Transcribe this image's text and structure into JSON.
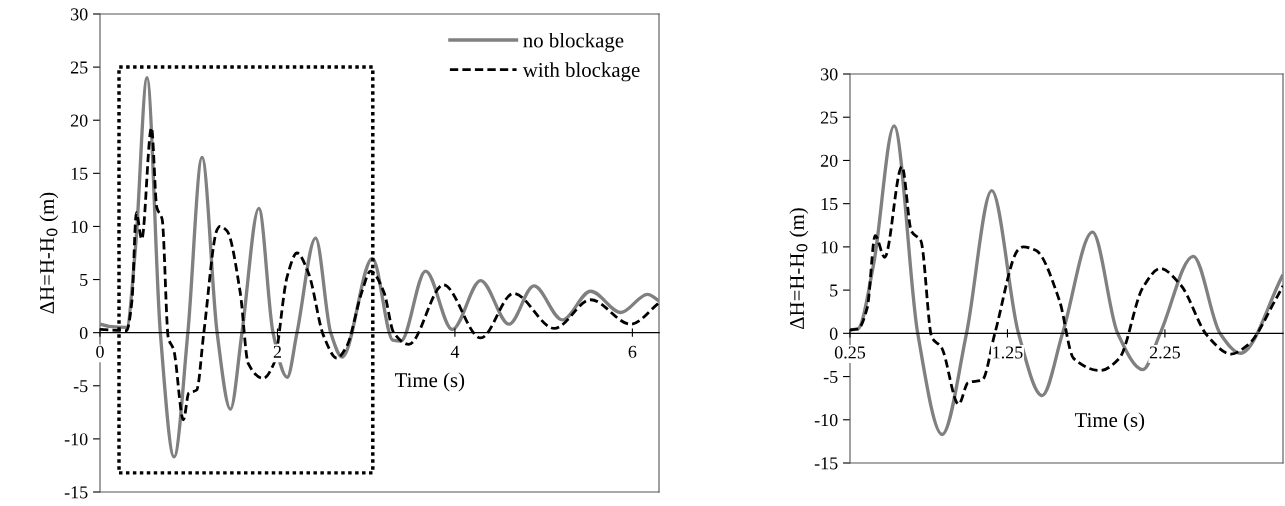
{
  "chart_data": [
    {
      "type": "line",
      "xlabel": "Time (s)",
      "ylabel": "ΔH=H-H$_{0}$ (m)",
      "xlim": [
        0,
        6.3
      ],
      "xticks": [
        0,
        2,
        4,
        6
      ],
      "ylim": [
        -15,
        30
      ],
      "yticks": [
        -15,
        -10,
        -5,
        0,
        5,
        10,
        15,
        20,
        25,
        30
      ],
      "legend": "top right",
      "series": [
        {
          "name": "no blockage",
          "color": "#808080",
          "line_style": "solid",
          "x": [
            0,
            0.1,
            0.3,
            0.4,
            0.53,
            0.68,
            0.835,
            0.99,
            1.15,
            1.32,
            1.47,
            1.6,
            1.79,
            1.95,
            2.11,
            2.22,
            2.43,
            2.6,
            2.73,
            3.07,
            3.3,
            3.39,
            3.67,
            3.97,
            4.29,
            4.61,
            4.89,
            5.21,
            5.53,
            5.87,
            6.17,
            6.3
          ],
          "values": [
            0.8,
            0.6,
            0.5,
            8,
            24,
            0,
            -11.7,
            0,
            16.5,
            0,
            -7.2,
            0,
            11.7,
            0,
            -4.2,
            0,
            8.9,
            0,
            -2.3,
            7,
            -0.7,
            -0.8,
            5.8,
            0.3,
            4.9,
            0.8,
            4.4,
            1.2,
            3.9,
            1.9,
            3.6,
            3
          ]
        },
        {
          "name": "with blockage",
          "color": "#000000",
          "line_style": "dashed",
          "x": [
            0,
            0.3,
            0.36,
            0.41,
            0.47,
            0.58,
            0.64,
            0.7,
            0.77,
            0.83,
            0.94,
            1.0,
            1.09,
            1.17,
            1.32,
            1.35,
            1.43,
            1.58,
            1.67,
            1.84,
            1.96,
            2.11,
            2.22,
            2.35,
            2.52,
            2.67,
            2.78,
            2.95,
            3.05,
            3.2,
            3.31,
            3.48,
            3.87,
            4.29,
            4.66,
            5.12,
            5.53,
            5.98,
            6.3
          ],
          "values": [
            0.3,
            0.2,
            3,
            11.3,
            8.8,
            19.3,
            11.8,
            10.7,
            -0.5,
            -1.6,
            -8.2,
            -5.7,
            -5.4,
            0,
            9.7,
            10,
            9.6,
            3.8,
            -2.9,
            -4.3,
            -2.9,
            5.3,
            7.5,
            5.6,
            -0.3,
            -2.4,
            -1.3,
            3.8,
            5.8,
            3.8,
            0,
            -1.1,
            4.5,
            -0.5,
            3.7,
            0.4,
            3.1,
            0.8,
            2.8
          ]
        }
      ]
    },
    {
      "type": "line",
      "xlabel": "Time (s)",
      "ylabel": "ΔH=H-H$_{0}$ (m)",
      "xlim": [
        0.25,
        3.0
      ],
      "xticks": [
        0.25,
        1.25,
        2.25
      ],
      "ylim": [
        -15,
        30
      ],
      "yticks": [
        -15,
        -10,
        -5,
        0,
        5,
        10,
        15,
        20,
        25,
        30
      ],
      "series": [
        {
          "color": "#808080",
          "line_style": "solid",
          "x": [
            0.25,
            0.3,
            0.4,
            0.53,
            0.68,
            0.835,
            0.99,
            1.15,
            1.32,
            1.47,
            1.6,
            1.79,
            1.95,
            2.11,
            2.22,
            2.43,
            2.6,
            2.73,
            3.0
          ],
          "values": [
            0.4,
            0.5,
            8,
            24,
            0,
            -11.7,
            0,
            16.5,
            0,
            -7.2,
            0,
            11.7,
            0,
            -4.2,
            0,
            8.9,
            0,
            -2.3,
            6.8
          ]
        },
        {
          "color": "#000000",
          "line_style": "dashed",
          "x": [
            0.25,
            0.3,
            0.36,
            0.41,
            0.47,
            0.58,
            0.64,
            0.7,
            0.77,
            0.83,
            0.94,
            1.0,
            1.09,
            1.17,
            1.32,
            1.35,
            1.43,
            1.58,
            1.67,
            1.84,
            1.96,
            2.11,
            2.22,
            2.35,
            2.52,
            2.67,
            2.78,
            2.95,
            3.0
          ],
          "values": [
            0.4,
            0.5,
            3,
            11.3,
            8.8,
            19.3,
            11.8,
            10.7,
            -0.5,
            -1.6,
            -8.2,
            -5.7,
            -5.4,
            0,
            9.7,
            10,
            9.6,
            3.8,
            -2.9,
            -4.3,
            -2.9,
            5.3,
            7.5,
            5.6,
            -0.3,
            -2.4,
            -1.3,
            3.8,
            5.5
          ]
        }
      ]
    }
  ]
}
